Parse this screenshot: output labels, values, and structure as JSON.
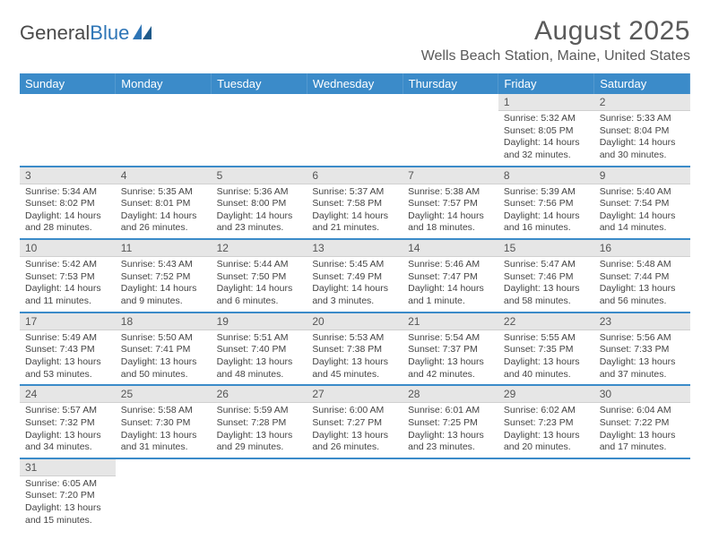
{
  "logo": {
    "text1": "General",
    "text2": "Blue"
  },
  "title": "August 2025",
  "location": "Wells Beach Station, Maine, United States",
  "colors": {
    "header_bg": "#3b8bc9",
    "cell_border": "#3b8bc9",
    "daynum_bg": "#e6e6e6",
    "text": "#444444"
  },
  "day_headers": [
    "Sunday",
    "Monday",
    "Tuesday",
    "Wednesday",
    "Thursday",
    "Friday",
    "Saturday"
  ],
  "weeks": [
    [
      null,
      null,
      null,
      null,
      null,
      {
        "n": "1",
        "sunrise": "Sunrise: 5:32 AM",
        "sunset": "Sunset: 8:05 PM",
        "daylight": "Daylight: 14 hours and 32 minutes."
      },
      {
        "n": "2",
        "sunrise": "Sunrise: 5:33 AM",
        "sunset": "Sunset: 8:04 PM",
        "daylight": "Daylight: 14 hours and 30 minutes."
      }
    ],
    [
      {
        "n": "3",
        "sunrise": "Sunrise: 5:34 AM",
        "sunset": "Sunset: 8:02 PM",
        "daylight": "Daylight: 14 hours and 28 minutes."
      },
      {
        "n": "4",
        "sunrise": "Sunrise: 5:35 AM",
        "sunset": "Sunset: 8:01 PM",
        "daylight": "Daylight: 14 hours and 26 minutes."
      },
      {
        "n": "5",
        "sunrise": "Sunrise: 5:36 AM",
        "sunset": "Sunset: 8:00 PM",
        "daylight": "Daylight: 14 hours and 23 minutes."
      },
      {
        "n": "6",
        "sunrise": "Sunrise: 5:37 AM",
        "sunset": "Sunset: 7:58 PM",
        "daylight": "Daylight: 14 hours and 21 minutes."
      },
      {
        "n": "7",
        "sunrise": "Sunrise: 5:38 AM",
        "sunset": "Sunset: 7:57 PM",
        "daylight": "Daylight: 14 hours and 18 minutes."
      },
      {
        "n": "8",
        "sunrise": "Sunrise: 5:39 AM",
        "sunset": "Sunset: 7:56 PM",
        "daylight": "Daylight: 14 hours and 16 minutes."
      },
      {
        "n": "9",
        "sunrise": "Sunrise: 5:40 AM",
        "sunset": "Sunset: 7:54 PM",
        "daylight": "Daylight: 14 hours and 14 minutes."
      }
    ],
    [
      {
        "n": "10",
        "sunrise": "Sunrise: 5:42 AM",
        "sunset": "Sunset: 7:53 PM",
        "daylight": "Daylight: 14 hours and 11 minutes."
      },
      {
        "n": "11",
        "sunrise": "Sunrise: 5:43 AM",
        "sunset": "Sunset: 7:52 PM",
        "daylight": "Daylight: 14 hours and 9 minutes."
      },
      {
        "n": "12",
        "sunrise": "Sunrise: 5:44 AM",
        "sunset": "Sunset: 7:50 PM",
        "daylight": "Daylight: 14 hours and 6 minutes."
      },
      {
        "n": "13",
        "sunrise": "Sunrise: 5:45 AM",
        "sunset": "Sunset: 7:49 PM",
        "daylight": "Daylight: 14 hours and 3 minutes."
      },
      {
        "n": "14",
        "sunrise": "Sunrise: 5:46 AM",
        "sunset": "Sunset: 7:47 PM",
        "daylight": "Daylight: 14 hours and 1 minute."
      },
      {
        "n": "15",
        "sunrise": "Sunrise: 5:47 AM",
        "sunset": "Sunset: 7:46 PM",
        "daylight": "Daylight: 13 hours and 58 minutes."
      },
      {
        "n": "16",
        "sunrise": "Sunrise: 5:48 AM",
        "sunset": "Sunset: 7:44 PM",
        "daylight": "Daylight: 13 hours and 56 minutes."
      }
    ],
    [
      {
        "n": "17",
        "sunrise": "Sunrise: 5:49 AM",
        "sunset": "Sunset: 7:43 PM",
        "daylight": "Daylight: 13 hours and 53 minutes."
      },
      {
        "n": "18",
        "sunrise": "Sunrise: 5:50 AM",
        "sunset": "Sunset: 7:41 PM",
        "daylight": "Daylight: 13 hours and 50 minutes."
      },
      {
        "n": "19",
        "sunrise": "Sunrise: 5:51 AM",
        "sunset": "Sunset: 7:40 PM",
        "daylight": "Daylight: 13 hours and 48 minutes."
      },
      {
        "n": "20",
        "sunrise": "Sunrise: 5:53 AM",
        "sunset": "Sunset: 7:38 PM",
        "daylight": "Daylight: 13 hours and 45 minutes."
      },
      {
        "n": "21",
        "sunrise": "Sunrise: 5:54 AM",
        "sunset": "Sunset: 7:37 PM",
        "daylight": "Daylight: 13 hours and 42 minutes."
      },
      {
        "n": "22",
        "sunrise": "Sunrise: 5:55 AM",
        "sunset": "Sunset: 7:35 PM",
        "daylight": "Daylight: 13 hours and 40 minutes."
      },
      {
        "n": "23",
        "sunrise": "Sunrise: 5:56 AM",
        "sunset": "Sunset: 7:33 PM",
        "daylight": "Daylight: 13 hours and 37 minutes."
      }
    ],
    [
      {
        "n": "24",
        "sunrise": "Sunrise: 5:57 AM",
        "sunset": "Sunset: 7:32 PM",
        "daylight": "Daylight: 13 hours and 34 minutes."
      },
      {
        "n": "25",
        "sunrise": "Sunrise: 5:58 AM",
        "sunset": "Sunset: 7:30 PM",
        "daylight": "Daylight: 13 hours and 31 minutes."
      },
      {
        "n": "26",
        "sunrise": "Sunrise: 5:59 AM",
        "sunset": "Sunset: 7:28 PM",
        "daylight": "Daylight: 13 hours and 29 minutes."
      },
      {
        "n": "27",
        "sunrise": "Sunrise: 6:00 AM",
        "sunset": "Sunset: 7:27 PM",
        "daylight": "Daylight: 13 hours and 26 minutes."
      },
      {
        "n": "28",
        "sunrise": "Sunrise: 6:01 AM",
        "sunset": "Sunset: 7:25 PM",
        "daylight": "Daylight: 13 hours and 23 minutes."
      },
      {
        "n": "29",
        "sunrise": "Sunrise: 6:02 AM",
        "sunset": "Sunset: 7:23 PM",
        "daylight": "Daylight: 13 hours and 20 minutes."
      },
      {
        "n": "30",
        "sunrise": "Sunrise: 6:04 AM",
        "sunset": "Sunset: 7:22 PM",
        "daylight": "Daylight: 13 hours and 17 minutes."
      }
    ],
    [
      {
        "n": "31",
        "sunrise": "Sunrise: 6:05 AM",
        "sunset": "Sunset: 7:20 PM",
        "daylight": "Daylight: 13 hours and 15 minutes."
      },
      null,
      null,
      null,
      null,
      null,
      null
    ]
  ]
}
